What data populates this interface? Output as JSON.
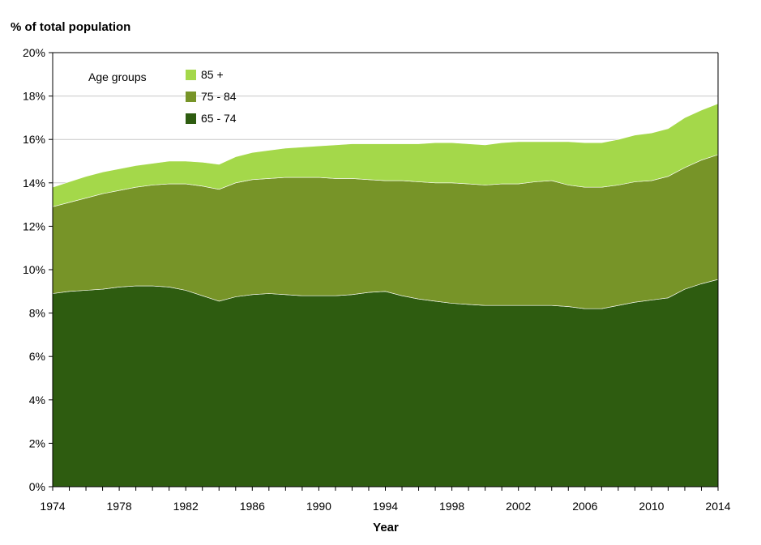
{
  "chart_data": {
    "type": "area",
    "stacked": true,
    "title": "",
    "ylabel": "% of total population",
    "xlabel": "Year",
    "legend_title": "Age groups",
    "legend_position": "top-left",
    "ylim": [
      0,
      20
    ],
    "xlim": [
      1974,
      2014
    ],
    "y_ticks": [
      "0%",
      "2%",
      "4%",
      "6%",
      "8%",
      "10%",
      "12%",
      "14%",
      "16%",
      "18%",
      "20%"
    ],
    "x_ticks": [
      "1974",
      "1978",
      "1982",
      "1986",
      "1990",
      "1994",
      "1998",
      "2002",
      "2006",
      "2010",
      "2014"
    ],
    "grid": "horizontal",
    "x": [
      1974,
      1975,
      1976,
      1977,
      1978,
      1979,
      1980,
      1981,
      1982,
      1983,
      1984,
      1985,
      1986,
      1987,
      1988,
      1989,
      1990,
      1991,
      1992,
      1993,
      1994,
      1995,
      1996,
      1997,
      1998,
      1999,
      2000,
      2001,
      2002,
      2003,
      2004,
      2005,
      2006,
      2007,
      2008,
      2009,
      2010,
      2011,
      2012,
      2013,
      2014
    ],
    "series": [
      {
        "name": "65 - 74",
        "color": "#2e5c10",
        "values": [
          8.9,
          9.0,
          9.05,
          9.1,
          9.2,
          9.25,
          9.25,
          9.2,
          9.05,
          8.8,
          8.55,
          8.75,
          8.85,
          8.9,
          8.85,
          8.8,
          8.8,
          8.8,
          8.85,
          8.95,
          9.0,
          8.8,
          8.65,
          8.55,
          8.45,
          8.4,
          8.35,
          8.35,
          8.35,
          8.35,
          8.35,
          8.3,
          8.2,
          8.2,
          8.35,
          8.5,
          8.6,
          8.7,
          9.1,
          9.35,
          9.55
        ]
      },
      {
        "name": "75 - 84",
        "color": "#779428",
        "values": [
          4.0,
          4.1,
          4.25,
          4.4,
          4.45,
          4.55,
          4.65,
          4.75,
          4.9,
          5.05,
          5.15,
          5.25,
          5.3,
          5.3,
          5.4,
          5.45,
          5.45,
          5.4,
          5.35,
          5.2,
          5.1,
          5.3,
          5.4,
          5.45,
          5.55,
          5.55,
          5.55,
          5.6,
          5.6,
          5.7,
          5.75,
          5.6,
          5.6,
          5.6,
          5.55,
          5.55,
          5.5,
          5.6,
          5.6,
          5.7,
          5.75
        ]
      },
      {
        "name": "85 +",
        "color": "#a4d84a",
        "values": [
          0.9,
          0.95,
          1.0,
          1.0,
          1.0,
          1.0,
          1.0,
          1.05,
          1.05,
          1.1,
          1.15,
          1.2,
          1.25,
          1.3,
          1.35,
          1.4,
          1.45,
          1.55,
          1.6,
          1.65,
          1.7,
          1.7,
          1.75,
          1.85,
          1.85,
          1.85,
          1.85,
          1.9,
          1.95,
          1.85,
          1.8,
          2.0,
          2.05,
          2.05,
          2.1,
          2.15,
          2.2,
          2.2,
          2.3,
          2.3,
          2.35
        ]
      }
    ]
  }
}
